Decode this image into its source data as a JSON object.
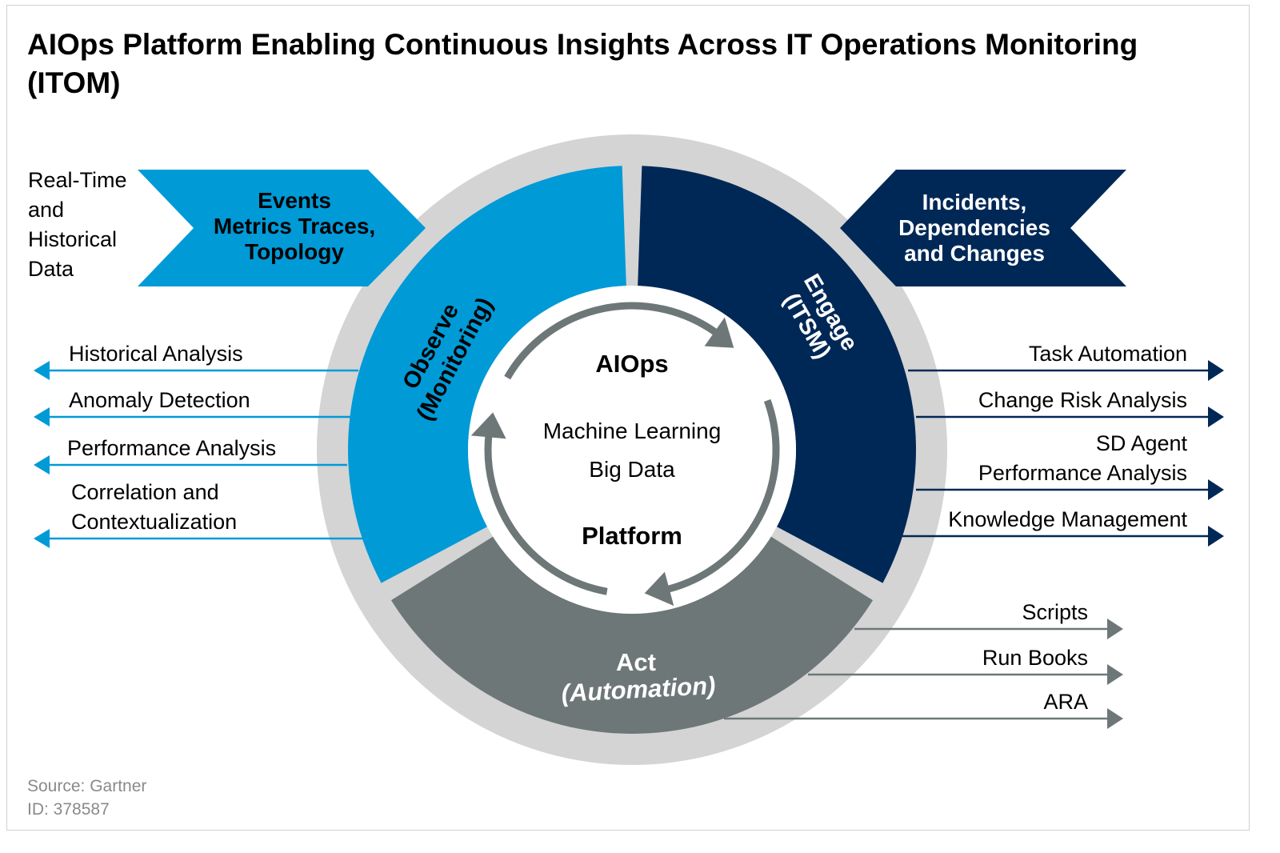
{
  "title": "AIOps Platform Enabling Continuous Insights Across IT Operations Monitoring (ITOM)",
  "colors": {
    "observe": "#009ad7",
    "engage": "#002856",
    "act": "#6e7778",
    "ring": "#d4d4d4",
    "inner_arrows": "#6e7778"
  },
  "inputs": {
    "left_label": [
      "Real-Time",
      "and",
      "Historical",
      "Data"
    ],
    "left_chevron": [
      "Events",
      "Metrics Traces,",
      "Topology"
    ],
    "right_chevron": [
      "Incidents,",
      "Dependencies",
      "and Changes"
    ]
  },
  "segments": {
    "observe": [
      "Observe",
      "(Monitoring)"
    ],
    "engage": [
      "Engage",
      "(ITSM)"
    ],
    "act": [
      "Act",
      "(Automation)"
    ]
  },
  "center": {
    "title": "AIOps",
    "line1": "Machine Learning",
    "line2": "Big Data",
    "footer": "Platform"
  },
  "observe_outputs": [
    [
      "Historical Analysis"
    ],
    [
      "Anomaly Detection"
    ],
    [
      "Performance Analysis"
    ],
    [
      "Correlation and",
      "Contextualization"
    ]
  ],
  "engage_outputs": [
    [
      "Task Automation"
    ],
    [
      "Change Risk Analysis"
    ],
    [
      "SD Agent",
      "Performance Analysis"
    ],
    [
      "Knowledge Management"
    ]
  ],
  "act_outputs": [
    "Scripts",
    "Run Books",
    "ARA"
  ],
  "source": {
    "line1": "Source: Gartner",
    "line2": "ID: 378587"
  }
}
